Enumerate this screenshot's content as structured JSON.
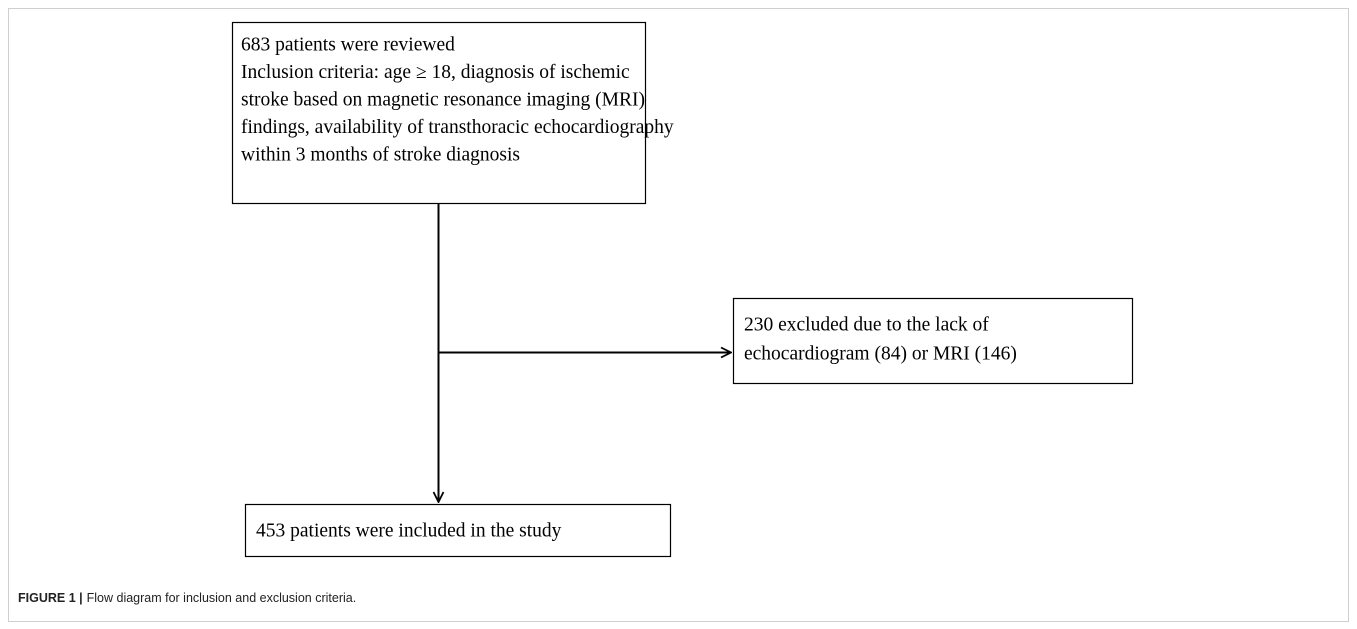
{
  "nodes": [
    {
      "lines": [
        "683 patients were reviewed",
        "Inclusion criteria: age ≥ 18, diagnosis of ischemic",
        "stroke based on magnetic resonance imaging (MRI)",
        "findings, availability of transthoracic echocardiography",
        "within 3 months of stroke diagnosis"
      ]
    },
    {
      "lines": [
        "230 excluded due to the lack of",
        "echocardiogram (84) or MRI (146)"
      ]
    },
    {
      "lines": [
        "453 patients were included in the study"
      ]
    }
  ],
  "caption": {
    "label": "FIGURE 1 |",
    "text": "Flow diagram for inclusion and exclusion criteria."
  }
}
